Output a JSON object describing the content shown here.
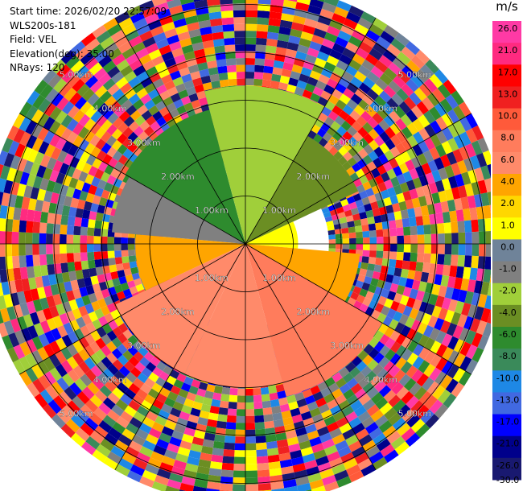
{
  "header": {
    "start_time": "Start time: 2026/02/20 22:57:09",
    "instrument": "WLS200s-181",
    "field": "Field: VEL",
    "elevation": "Elevation(deg): 35.00",
    "nrays": "NRays: 120"
  },
  "colorbar": {
    "unit": "m/s",
    "ticks": [
      "26.0",
      "21.0",
      "17.0",
      "13.0",
      "10.0",
      "8.0",
      "6.0",
      "4.0",
      "2.0",
      "1.0",
      "0.0",
      "-1.0",
      "-2.0",
      "-4.0",
      "-6.0",
      "-8.0",
      "-10.0",
      "-13.0",
      "-17.0",
      "-21.0",
      "-26.0",
      "-30.0"
    ],
    "colors": [
      "#ff3aa5",
      "#ff2a80",
      "#ff0000",
      "#f02020",
      "#ff5a3a",
      "#ff7c5c",
      "#ff8a6a",
      "#ffa500",
      "#ffd700",
      "#ffff00",
      "#6f8399",
      "#808080",
      "#a0cf3a",
      "#6b8e23",
      "#2e8b2e",
      "#3a8a5a",
      "#1e88e5",
      "#4169e1",
      "#0000ff",
      "#00008b",
      "#191970"
    ]
  },
  "chart_data": {
    "type": "ppi",
    "field": "VEL",
    "unit": "m/s",
    "elevation_deg": 35.0,
    "nrays": 120,
    "range_rings_km": [
      1.0,
      2.0,
      3.0,
      4.0,
      5.0
    ],
    "ring_labels": [
      "1.00km",
      "2.00km",
      "3.00km",
      "4.00km",
      "5.00km"
    ],
    "label_azimuths_deg": [
      45,
      135,
      225,
      315
    ],
    "max_range_km": 5.45,
    "spokes_deg": [
      0,
      30,
      60,
      90,
      120,
      150,
      180,
      210,
      240,
      270,
      300,
      330
    ],
    "sectors": [
      {
        "az_from": 300,
        "az_to": 345,
        "r_from": 0.0,
        "r_to": 2.9,
        "velocity": -7.0
      },
      {
        "az_from": 345,
        "az_to": 30,
        "r_from": 0.0,
        "r_to": 3.3,
        "velocity": -2.5
      },
      {
        "az_from": 30,
        "az_to": 65,
        "r_from": 0.0,
        "r_to": 2.6,
        "velocity": -5.0
      },
      {
        "az_from": 65,
        "az_to": 95,
        "r_from": 0.0,
        "r_to": 1.1,
        "velocity": 0.5
      },
      {
        "az_from": 95,
        "az_to": 120,
        "r_from": 0.0,
        "r_to": 2.4,
        "velocity": 3.0
      },
      {
        "az_from": 120,
        "az_to": 165,
        "r_from": 0.0,
        "r_to": 3.3,
        "velocity": 7.5
      },
      {
        "az_from": 165,
        "az_to": 205,
        "r_from": 0.0,
        "r_to": 3.0,
        "velocity": 5.0
      },
      {
        "az_from": 205,
        "az_to": 245,
        "r_from": 0.0,
        "r_to": 3.0,
        "velocity": 5.0
      },
      {
        "az_from": 245,
        "az_to": 275,
        "r_from": 0.0,
        "r_to": 2.3,
        "velocity": 3.0
      },
      {
        "az_from": 275,
        "az_to": 300,
        "r_from": 0.0,
        "r_to": 2.8,
        "velocity": -1.5
      }
    ]
  }
}
